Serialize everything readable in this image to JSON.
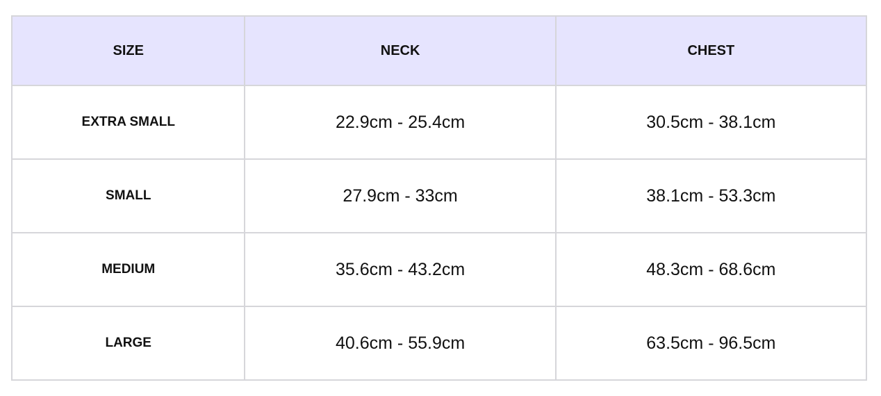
{
  "header_bg": "#e6e4fe",
  "columns": [
    "SIZE",
    "NECK",
    "CHEST"
  ],
  "rows": [
    {
      "size": "EXTRA SMALL",
      "neck": "22.9cm - 25.4cm",
      "chest": "30.5cm - 38.1cm"
    },
    {
      "size": "SMALL",
      "neck": "27.9cm - 33cm",
      "chest": "38.1cm - 53.3cm"
    },
    {
      "size": "MEDIUM",
      "neck": "35.6cm - 43.2cm",
      "chest": "48.3cm - 68.6cm"
    },
    {
      "size": "LARGE",
      "neck": "40.6cm - 55.9cm",
      "chest": "63.5cm - 96.5cm"
    }
  ]
}
